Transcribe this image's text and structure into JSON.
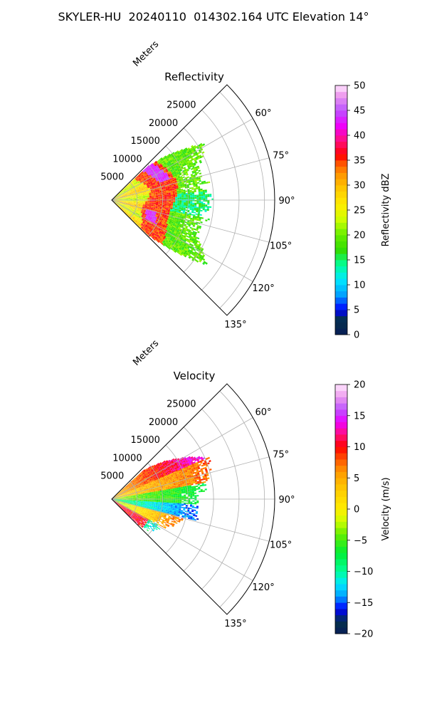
{
  "figure": {
    "title": "SKYLER-HU  20240110  014302.164 UTC Elevation 14°"
  },
  "chart_data": [
    {
      "type": "heatmap",
      "title": "Reflectivity",
      "projection": "polar sector",
      "azimuth_range_deg": [
        45,
        135
      ],
      "azimuth_ticks": [
        "60°",
        "75°",
        "90°",
        "105°",
        "120°",
        "135°"
      ],
      "range_label": "Meters",
      "range_max_m": 32000,
      "range_ticks": [
        "5000",
        "10000",
        "15000",
        "20000",
        "25000"
      ],
      "grid": true,
      "colorbar": {
        "label": "Reflectivity dBZ",
        "range": [
          0,
          50
        ],
        "ticks": [
          "0",
          "5",
          "10",
          "15",
          "20",
          "25",
          "30",
          "35",
          "40",
          "45",
          "50"
        ]
      },
      "features": [
        {
          "variable": "reflectivity",
          "azimuth_deg": [
            46,
            134
          ],
          "range_m": [
            0,
            7000
          ],
          "dbz": 28
        },
        {
          "variable": "reflectivity",
          "azimuth_deg": [
            52,
            128
          ],
          "range_m": [
            7000,
            12500
          ],
          "dbz": 36
        },
        {
          "variable": "reflectivity",
          "azimuth_deg": [
            55,
            83
          ],
          "range_m": [
            9000,
            11500
          ],
          "dbz": 42
        },
        {
          "variable": "reflectivity",
          "azimuth_deg": [
            103,
            120
          ],
          "range_m": [
            8000,
            10000
          ],
          "dbz": 43
        },
        {
          "variable": "reflectivity",
          "azimuth_deg": [
            60,
            120
          ],
          "range_m": [
            12500,
            20000
          ],
          "dbz": 20
        },
        {
          "variable": "reflectivity",
          "azimuth_deg": [
            85,
            100
          ],
          "range_m": [
            12000,
            17000
          ],
          "dbz": 14
        }
      ]
    },
    {
      "type": "heatmap",
      "title": "Velocity",
      "projection": "polar sector",
      "azimuth_range_deg": [
        45,
        135
      ],
      "azimuth_ticks": [
        "60°",
        "75°",
        "90°",
        "105°",
        "120°",
        "135°"
      ],
      "range_label": "Meters",
      "range_max_m": 32000,
      "range_ticks": [
        "5000",
        "10000",
        "15000",
        "20000",
        "25000"
      ],
      "grid": true,
      "colorbar": {
        "label": "Velocity (m/s)",
        "range": [
          -20,
          20
        ],
        "ticks": [
          "−20",
          "−15",
          "−10",
          "−5",
          "0",
          "5",
          "10",
          "15",
          "20"
        ]
      },
      "features": [
        {
          "variable": "velocity",
          "azimuth_deg": [
            55,
            68
          ],
          "range_m": [
            13000,
            21000
          ],
          "ms": 12
        },
        {
          "variable": "velocity",
          "azimuth_deg": [
            68,
            82
          ],
          "range_m": [
            6000,
            18000
          ],
          "ms": 4
        },
        {
          "variable": "velocity",
          "azimuth_deg": [
            82,
            94
          ],
          "range_m": [
            3000,
            16000
          ],
          "ms": -5
        },
        {
          "variable": "velocity",
          "azimuth_deg": [
            94,
            104
          ],
          "range_m": [
            4000,
            14000
          ],
          "ms": -12
        },
        {
          "variable": "velocity",
          "azimuth_deg": [
            104,
            118
          ],
          "range_m": [
            5000,
            13000
          ],
          "ms": 2
        },
        {
          "variable": "velocity",
          "azimuth_deg": [
            118,
            130
          ],
          "range_m": [
            3000,
            10000
          ],
          "ms": 15
        }
      ]
    }
  ]
}
